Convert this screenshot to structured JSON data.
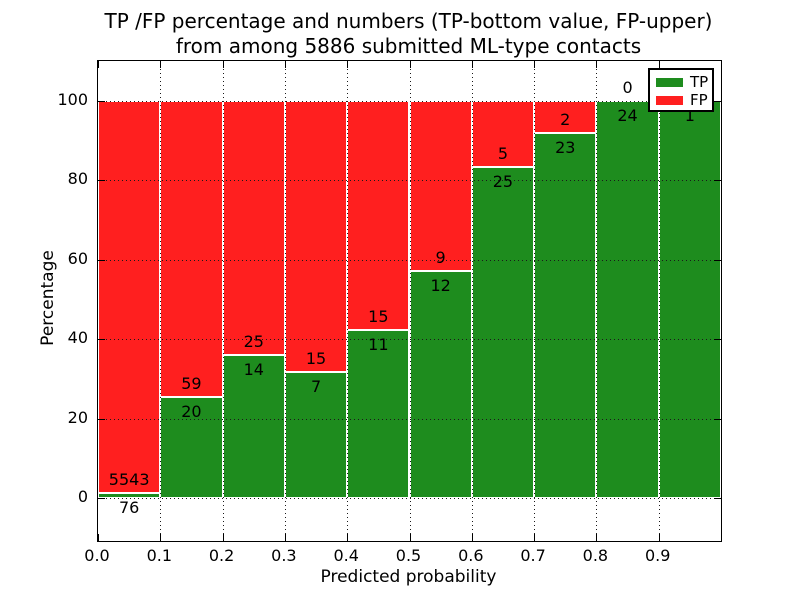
{
  "title": {
    "line1": "TP /FP percentage and numbers (TP-bottom value, FP-upper)",
    "line2": "from among 5886 submitted ML-type contacts"
  },
  "chart_data": {
    "type": "bar",
    "stacked": true,
    "normalized_to_percent": true,
    "title": "TP /FP percentage and numbers (TP-bottom value, FP-upper) from among 5886 submitted ML-type contacts",
    "xlabel": "Predicted probability",
    "ylabel": "Percentage",
    "x_tick_labels": [
      "0.0",
      "0.1",
      "0.2",
      "0.3",
      "0.4",
      "0.5",
      "0.6",
      "0.7",
      "0.8",
      "0.9"
    ],
    "y_tick_values": [
      0,
      20,
      40,
      60,
      80,
      100
    ],
    "xlim": [
      0.0,
      1.0
    ],
    "ylim": [
      -10.8,
      110.1
    ],
    "bin_width": 0.1,
    "grid": true,
    "grid_style": "dotted",
    "total_contacts": 5886,
    "colors": {
      "tp": "#1e8c1e",
      "fp": "#ff1f1f"
    },
    "legend": {
      "position": "upper right",
      "entries": [
        {
          "label": "TP",
          "color": "#1e8c1e"
        },
        {
          "label": "FP",
          "color": "#ff1f1f"
        }
      ]
    },
    "bins": [
      {
        "range": [
          0.0,
          0.1
        ],
        "tp": 76,
        "fp": 5543
      },
      {
        "range": [
          0.1,
          0.2
        ],
        "tp": 20,
        "fp": 59
      },
      {
        "range": [
          0.2,
          0.3
        ],
        "tp": 14,
        "fp": 25
      },
      {
        "range": [
          0.3,
          0.4
        ],
        "tp": 7,
        "fp": 15
      },
      {
        "range": [
          0.4,
          0.5
        ],
        "tp": 11,
        "fp": 15
      },
      {
        "range": [
          0.5,
          0.6
        ],
        "tp": 12,
        "fp": 9
      },
      {
        "range": [
          0.6,
          0.7
        ],
        "tp": 25,
        "fp": 5
      },
      {
        "range": [
          0.7,
          0.8
        ],
        "tp": 23,
        "fp": 2
      },
      {
        "range": [
          0.8,
          0.9
        ],
        "tp": 24,
        "fp": 0
      },
      {
        "range": [
          0.9,
          1.0
        ],
        "tp": 1,
        "fp": 0
      }
    ]
  }
}
